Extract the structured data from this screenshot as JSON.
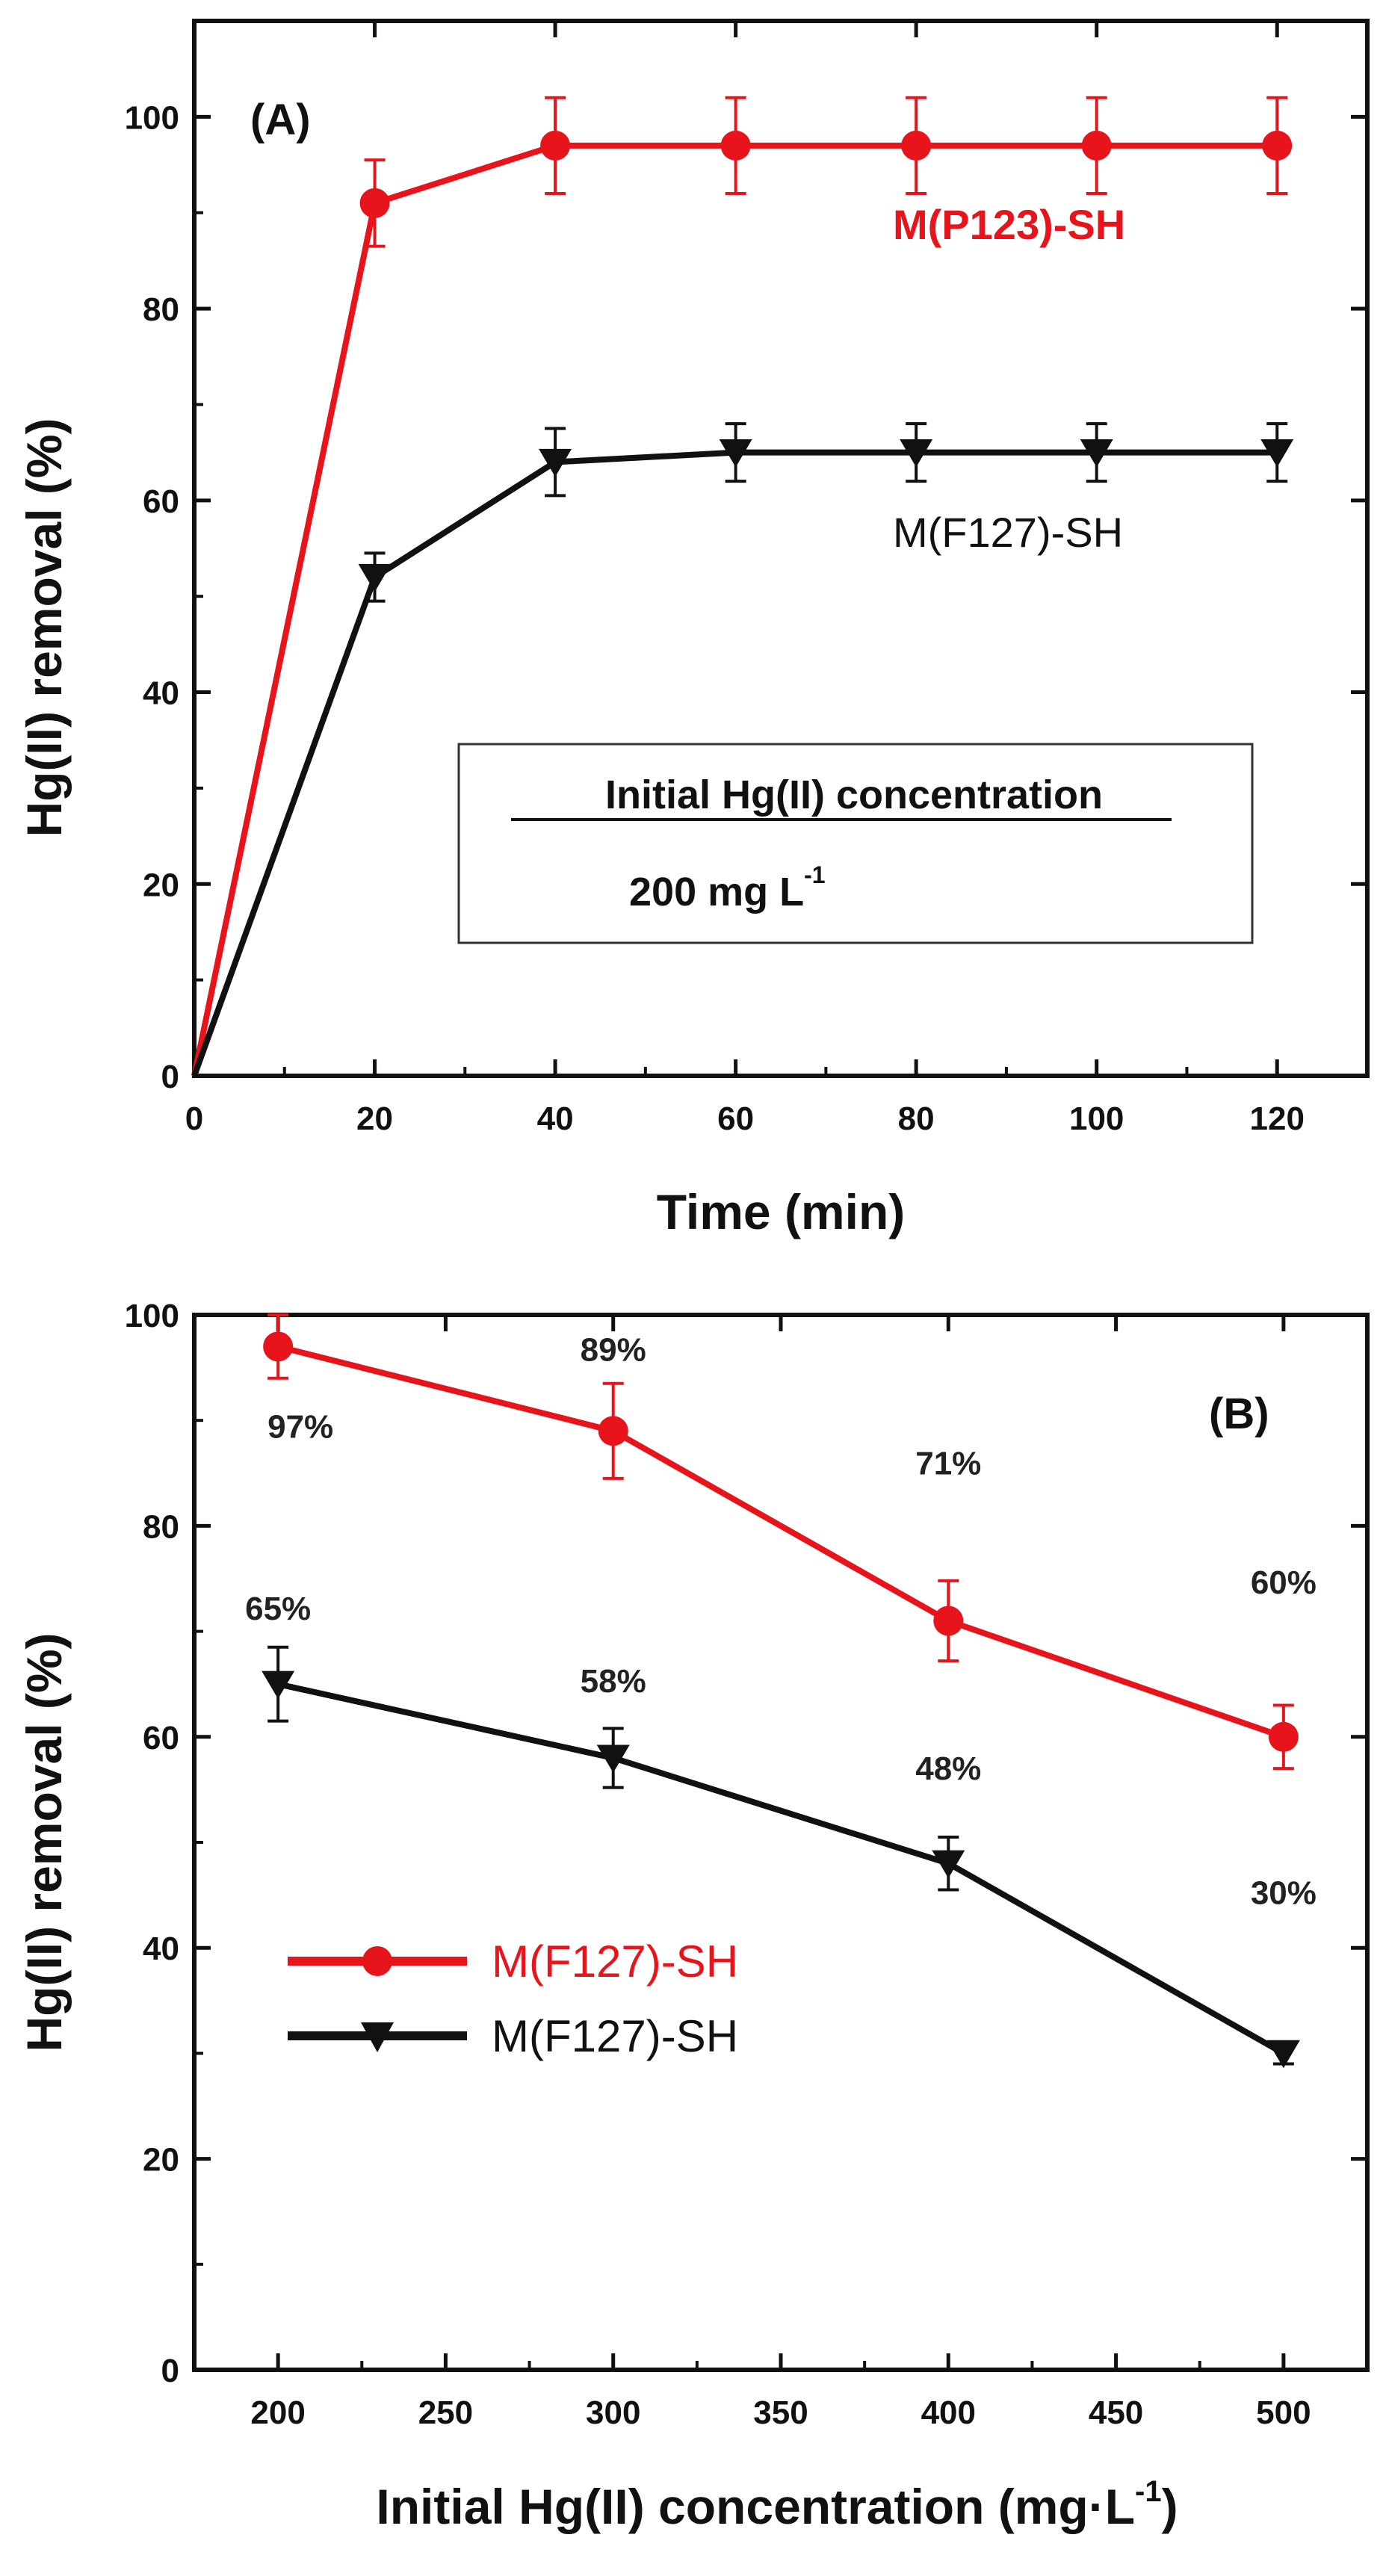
{
  "colors": {
    "red": "#e8141b",
    "black": "#111111",
    "axis": "#111111"
  },
  "chart_data": [
    {
      "type": "line",
      "panel_label": "(A)",
      "xlabel": "Time (min)",
      "ylabel": "Hg(II) removal (%)",
      "xlim": [
        0,
        130
      ],
      "ylim": [
        0,
        110
      ],
      "xticks": [
        0,
        20,
        40,
        60,
        80,
        100,
        120
      ],
      "yticks": [
        0,
        20,
        40,
        60,
        80,
        100
      ],
      "series": [
        {
          "name": "M(P123)-SH",
          "color": "#e8141b",
          "marker": "circle",
          "x": [
            0,
            20,
            40,
            60,
            80,
            100,
            120
          ],
          "y": [
            0,
            91,
            97,
            97,
            97,
            97,
            97
          ],
          "err": [
            0,
            4.5,
            5,
            5,
            5,
            5,
            5
          ]
        },
        {
          "name": "M(F127)-SH",
          "color": "#111111",
          "marker": "triangle-down",
          "x": [
            0,
            20,
            40,
            60,
            80,
            100,
            120
          ],
          "y": [
            0,
            52,
            64,
            65,
            65,
            65,
            65
          ],
          "err": [
            0,
            2.5,
            3.5,
            3,
            3,
            3,
            3
          ]
        }
      ],
      "annotation": {
        "title": "Initial Hg(II) concentration",
        "value": "200 mg L",
        "superscript": "-1"
      }
    },
    {
      "type": "line",
      "panel_label": "(B)",
      "xlabel": "Initial Hg(II) concentration (mg·L",
      "xlabel_sup": "-1",
      "xlabel_end": ")",
      "ylabel": "Hg(II) removal (%)",
      "xlim": [
        175,
        525
      ],
      "ylim": [
        0,
        100
      ],
      "xticks": [
        200,
        250,
        300,
        350,
        400,
        450,
        500
      ],
      "yticks": [
        0,
        20,
        40,
        60,
        80,
        100
      ],
      "series": [
        {
          "name": "M(F127)-SH",
          "color": "#e8141b",
          "marker": "circle",
          "x": [
            200,
            300,
            400,
            500
          ],
          "y": [
            97,
            89,
            71,
            60
          ],
          "err": [
            3,
            4.5,
            3.8,
            3
          ],
          "labels": [
            "97%",
            "89%",
            "71%",
            "60%"
          ]
        },
        {
          "name": "M(F127)-SH",
          "color": "#111111",
          "marker": "triangle-down",
          "x": [
            200,
            300,
            400,
            500
          ],
          "y": [
            65,
            58,
            48,
            30
          ],
          "err": [
            3.5,
            2.8,
            2.5,
            1
          ],
          "labels": [
            "65%",
            "58%",
            "48%",
            "30%"
          ]
        }
      ]
    }
  ]
}
